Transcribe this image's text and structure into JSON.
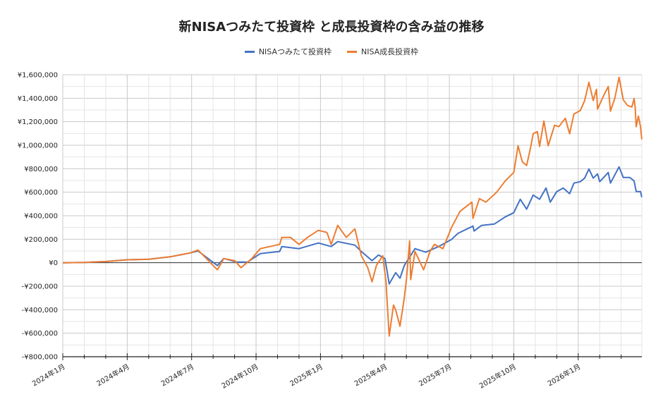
{
  "chart_data": {
    "type": "line",
    "title": "新NISAつみたて投資枠 と成長投資枠の含み益の推移",
    "xlabel": "",
    "ylabel": "",
    "xlim": [
      0,
      26.96
    ],
    "ylim": [
      -800000,
      1600000
    ],
    "y_ticks": [
      -800000,
      -600000,
      -400000,
      -200000,
      0,
      200000,
      400000,
      600000,
      800000,
      1000000,
      1200000,
      1400000,
      1600000
    ],
    "y_tick_labels": [
      "-¥800,000",
      "-¥600,000",
      "-¥400,000",
      "-¥200,000",
      "¥0",
      "¥200,000",
      "¥400,000",
      "¥600,000",
      "¥800,000",
      "¥1,000,000",
      "¥1,200,000",
      "¥1,400,000",
      "¥1,600,000"
    ],
    "x_ticks": [
      0,
      3,
      6,
      9,
      12,
      15,
      18,
      21,
      24
    ],
    "x_tick_labels": [
      "2024年1月",
      "2024年4月",
      "2024年7月",
      "2024年10月",
      "2025年1月",
      "2025年4月",
      "2025年7月",
      "2025年10月",
      "2026年1月"
    ],
    "grid": true,
    "legend": "top-center",
    "series": [
      {
        "name": "NISAつみたて投資枠",
        "color": "#4472C4",
        "points": [
          [
            0,
            0
          ],
          [
            1,
            3000
          ],
          [
            2,
            10000
          ],
          [
            3,
            25000
          ],
          [
            4,
            30000
          ],
          [
            5,
            50000
          ],
          [
            5.94,
            84000
          ],
          [
            6.3,
            100000
          ],
          [
            7.2,
            -24000
          ],
          [
            7.5,
            36000
          ],
          [
            8.1,
            6000
          ],
          [
            8.6,
            6000
          ],
          [
            9.2,
            78000
          ],
          [
            10.1,
            96000
          ],
          [
            10.2,
            138000
          ],
          [
            11,
            120000
          ],
          [
            11.9,
            168000
          ],
          [
            12.5,
            138000
          ],
          [
            12.8,
            180000
          ],
          [
            13.6,
            150000
          ],
          [
            13.9,
            96000
          ],
          [
            14.4,
            18000
          ],
          [
            14.7,
            66000
          ],
          [
            15,
            36000
          ],
          [
            15.2,
            -180000
          ],
          [
            15.5,
            -84000
          ],
          [
            15.7,
            -132000
          ],
          [
            15.9,
            -24000
          ],
          [
            16.4,
            120000
          ],
          [
            16.9,
            90000
          ],
          [
            17.5,
            138000
          ],
          [
            18.1,
            198000
          ],
          [
            18.4,
            250000
          ],
          [
            19.1,
            312000
          ],
          [
            19.15,
            270000
          ],
          [
            19.5,
            318000
          ],
          [
            20.1,
            330000
          ],
          [
            20.6,
            390000
          ],
          [
            21,
            426000
          ],
          [
            21.3,
            540000
          ],
          [
            21.6,
            456000
          ],
          [
            21.9,
            576000
          ],
          [
            22.2,
            540000
          ],
          [
            22.5,
            636000
          ],
          [
            22.7,
            516000
          ],
          [
            23,
            606000
          ],
          [
            23.3,
            636000
          ],
          [
            23.6,
            588000
          ],
          [
            23.8,
            678000
          ],
          [
            24.1,
            690000
          ],
          [
            24.3,
            720000
          ],
          [
            24.5,
            798000
          ],
          [
            24.7,
            720000
          ],
          [
            24.9,
            756000
          ],
          [
            25,
            690000
          ],
          [
            25.4,
            768000
          ],
          [
            25.5,
            678000
          ],
          [
            25.9,
            816000
          ],
          [
            26.1,
            726000
          ],
          [
            26.4,
            726000
          ],
          [
            26.6,
            696000
          ],
          [
            26.7,
            606000
          ],
          [
            26.9,
            606000
          ],
          [
            26.96,
            558000
          ]
        ]
      },
      {
        "name": "NISA成長投資枠",
        "color": "#ED7D31",
        "points": [
          [
            0,
            0
          ],
          [
            1,
            3000
          ],
          [
            2,
            10000
          ],
          [
            3,
            25000
          ],
          [
            4,
            30000
          ],
          [
            5,
            50000
          ],
          [
            5.94,
            84000
          ],
          [
            6.3,
            108000
          ],
          [
            7.2,
            -60000
          ],
          [
            7.5,
            36000
          ],
          [
            8,
            18000
          ],
          [
            8.3,
            -42000
          ],
          [
            8.8,
            36000
          ],
          [
            9.2,
            120000
          ],
          [
            10.1,
            156000
          ],
          [
            10.2,
            216000
          ],
          [
            10.6,
            216000
          ],
          [
            11,
            156000
          ],
          [
            11.4,
            216000
          ],
          [
            11.9,
            276000
          ],
          [
            12.3,
            258000
          ],
          [
            12.5,
            156000
          ],
          [
            12.8,
            318000
          ],
          [
            13.2,
            216000
          ],
          [
            13.6,
            288000
          ],
          [
            13.9,
            60000
          ],
          [
            14.2,
            -42000
          ],
          [
            14.4,
            -162000
          ],
          [
            14.6,
            -24000
          ],
          [
            14.9,
            60000
          ],
          [
            15.05,
            -162000
          ],
          [
            15.1,
            -324000
          ],
          [
            15.2,
            -624000
          ],
          [
            15.4,
            -360000
          ],
          [
            15.5,
            -402000
          ],
          [
            15.7,
            -540000
          ],
          [
            15.9,
            -300000
          ],
          [
            16,
            -144000
          ],
          [
            16.15,
            186000
          ],
          [
            16.2,
            -144000
          ],
          [
            16.4,
            96000
          ],
          [
            16.8,
            -60000
          ],
          [
            17.1,
            96000
          ],
          [
            17.3,
            156000
          ],
          [
            17.7,
            120000
          ],
          [
            18.1,
            300000
          ],
          [
            18.5,
            438000
          ],
          [
            19.05,
            516000
          ],
          [
            19.1,
            378000
          ],
          [
            19.4,
            546000
          ],
          [
            19.7,
            516000
          ],
          [
            20.2,
            600000
          ],
          [
            20.6,
            696000
          ],
          [
            21,
            768000
          ],
          [
            21.2,
            996000
          ],
          [
            21.4,
            858000
          ],
          [
            21.6,
            828000
          ],
          [
            21.8,
            996000
          ],
          [
            21.9,
            1098000
          ],
          [
            22.1,
            1116000
          ],
          [
            22.2,
            990000
          ],
          [
            22.4,
            1206000
          ],
          [
            22.6,
            996000
          ],
          [
            22.9,
            1170000
          ],
          [
            23.1,
            1158000
          ],
          [
            23.4,
            1230000
          ],
          [
            23.6,
            1098000
          ],
          [
            23.8,
            1266000
          ],
          [
            24.1,
            1296000
          ],
          [
            24.3,
            1380000
          ],
          [
            24.5,
            1536000
          ],
          [
            24.7,
            1380000
          ],
          [
            24.85,
            1476000
          ],
          [
            24.9,
            1308000
          ],
          [
            25.2,
            1428000
          ],
          [
            25.4,
            1500000
          ],
          [
            25.5,
            1290000
          ],
          [
            25.7,
            1398000
          ],
          [
            25.9,
            1578000
          ],
          [
            26.1,
            1386000
          ],
          [
            26.3,
            1338000
          ],
          [
            26.5,
            1326000
          ],
          [
            26.6,
            1398000
          ],
          [
            26.65,
            1326000
          ],
          [
            26.7,
            1158000
          ],
          [
            26.8,
            1248000
          ],
          [
            26.9,
            1158000
          ],
          [
            26.96,
            1050000
          ]
        ]
      }
    ]
  }
}
